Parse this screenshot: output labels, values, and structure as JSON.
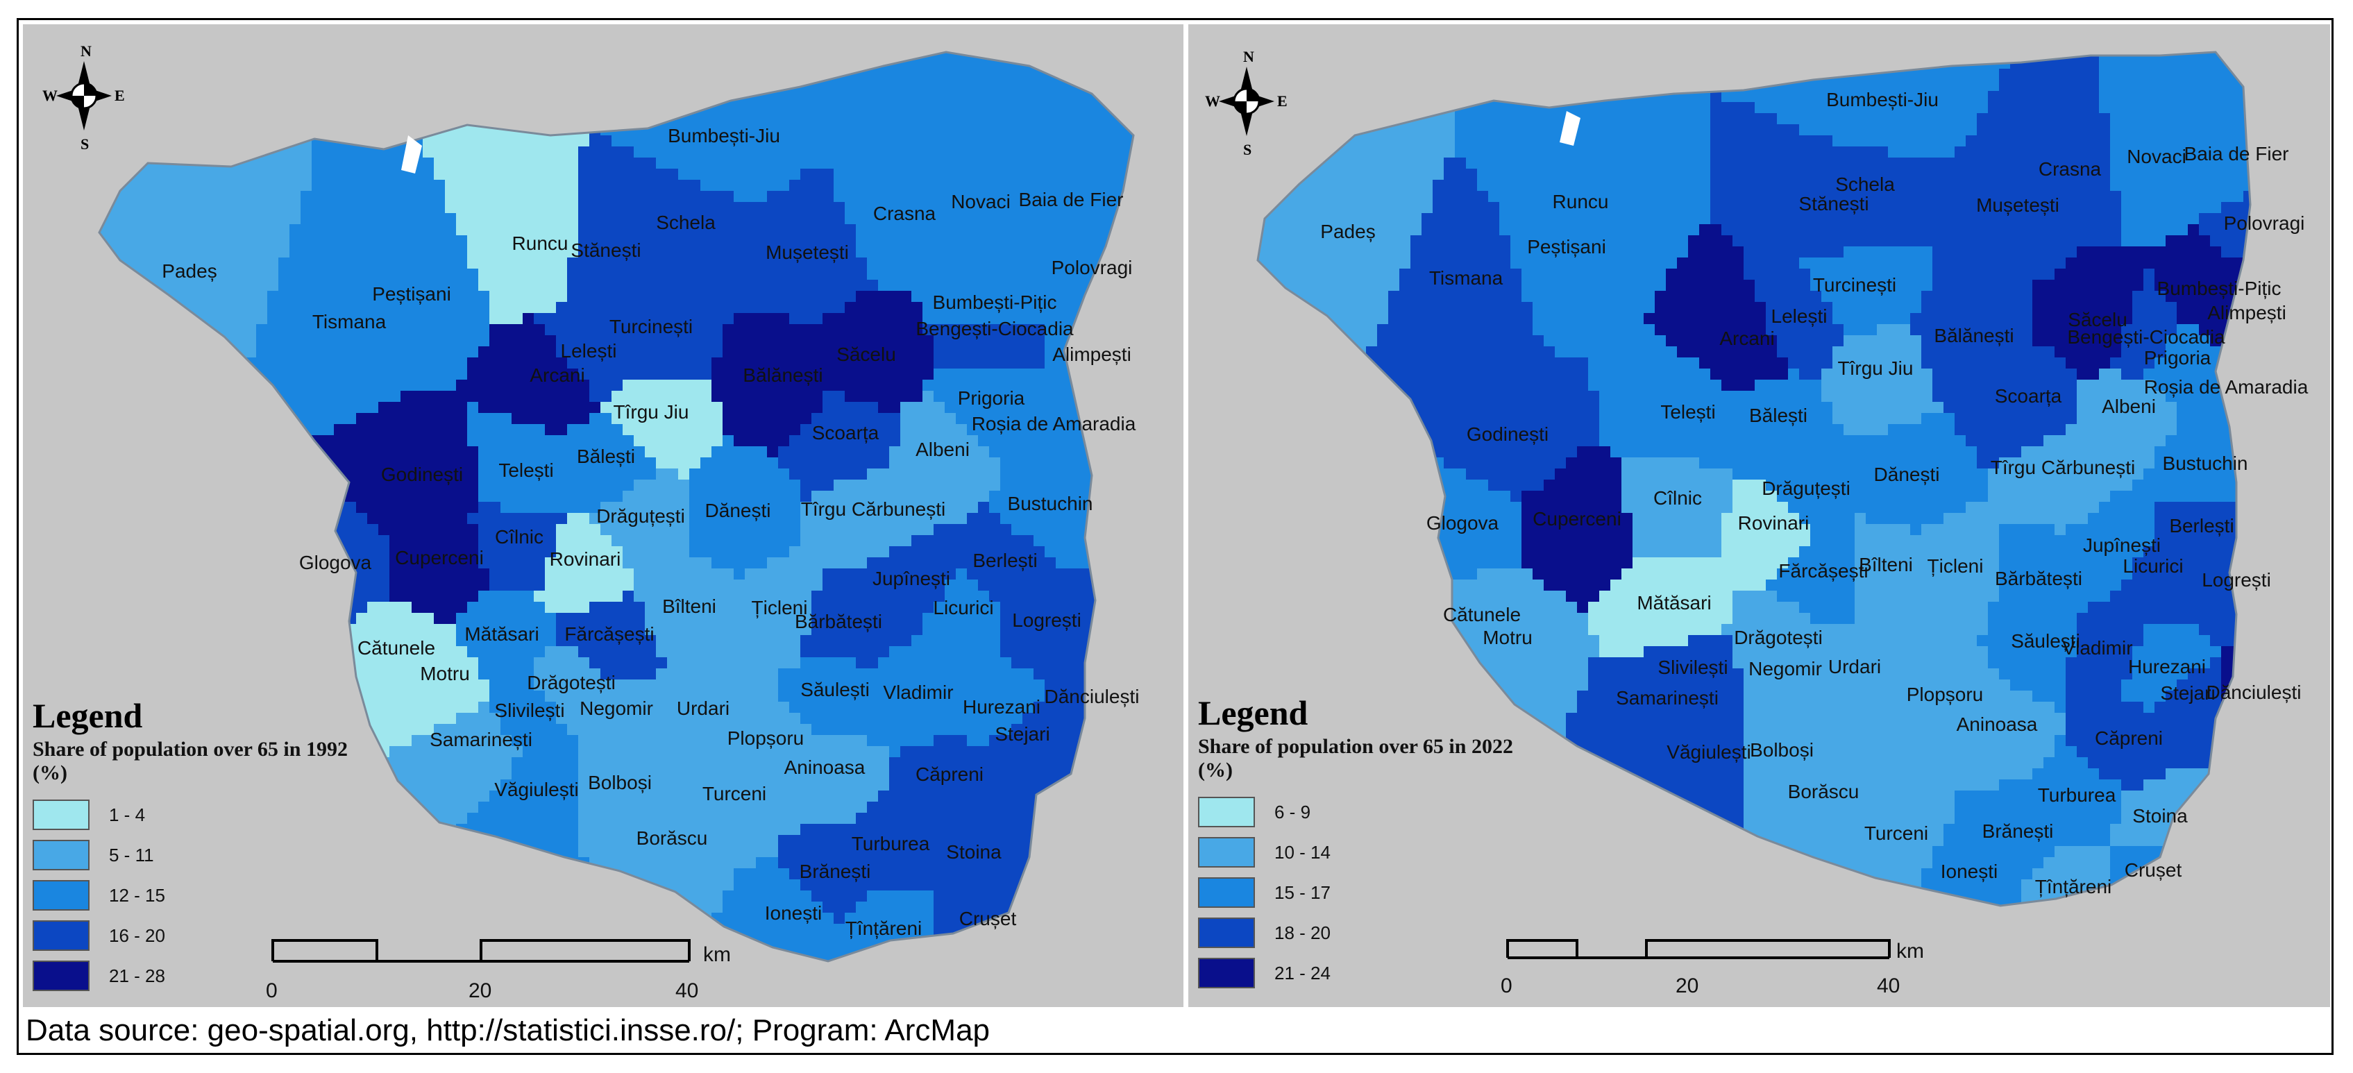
{
  "footer": "Data source: geo-spatial.org, http://statistici.insse.ro/; Program: ArcMap",
  "compass": {
    "n": "N",
    "s": "S",
    "e": "E",
    "w": "W"
  },
  "scale_unit": "km",
  "maps": [
    {
      "legend_title": "Legend",
      "legend_subtitle": "Share of population over 65 in 1992 (%)",
      "classes": [
        {
          "label": "1 - 4",
          "color": "#9fe7ee"
        },
        {
          "label": "5 - 11",
          "color": "#48a8e6"
        },
        {
          "label": "12 - 15",
          "color": "#1a86e0"
        },
        {
          "label": "16 - 20",
          "color": "#0c47c2"
        },
        {
          "label": "21 - 28",
          "color": "#090f8c"
        }
      ],
      "scale_ticks": [
        "0",
        "20",
        "40"
      ],
      "places": [
        {
          "name": "Bumbești-Jiu",
          "class": 2
        },
        {
          "name": "Padeș",
          "class": 1
        },
        {
          "name": "Runcu",
          "class": 0
        },
        {
          "name": "Schela",
          "class": 3
        },
        {
          "name": "Stănești",
          "class": 3
        },
        {
          "name": "Mușetești",
          "class": 3
        },
        {
          "name": "Crasna",
          "class": 2
        },
        {
          "name": "Novaci",
          "class": 2
        },
        {
          "name": "Baia de Fier",
          "class": 2
        },
        {
          "name": "Polovragi",
          "class": 2
        },
        {
          "name": "Peștișani",
          "class": 2
        },
        {
          "name": "Tismana",
          "class": 2
        },
        {
          "name": "Turcinești",
          "class": 3
        },
        {
          "name": "Bumbești-Pițic",
          "class": 2
        },
        {
          "name": "Bengești-Ciocadia",
          "class": 3
        },
        {
          "name": "Alimpești",
          "class": 2
        },
        {
          "name": "Lelești",
          "class": 3
        },
        {
          "name": "Arcani",
          "class": 4
        },
        {
          "name": "Bălănești",
          "class": 4
        },
        {
          "name": "Săcelu",
          "class": 4
        },
        {
          "name": "Tîrgu Jiu",
          "class": 0
        },
        {
          "name": "Prigoria",
          "class": 2
        },
        {
          "name": "Roșia de Amaradia",
          "class": 2
        },
        {
          "name": "Scoarța",
          "class": 3
        },
        {
          "name": "Albeni",
          "class": 1
        },
        {
          "name": "Godinești",
          "class": 4
        },
        {
          "name": "Telești",
          "class": 2
        },
        {
          "name": "Bălești",
          "class": 2
        },
        {
          "name": "Bustuchin",
          "class": 2
        },
        {
          "name": "Drăguțești",
          "class": 1
        },
        {
          "name": "Dănești",
          "class": 2
        },
        {
          "name": "Tîrgu Cărbunești",
          "class": 1
        },
        {
          "name": "Cîlnic",
          "class": 3
        },
        {
          "name": "Glogova",
          "class": 3
        },
        {
          "name": "Cuperceni",
          "class": 4
        },
        {
          "name": "Rovinari",
          "class": 0
        },
        {
          "name": "Berlești",
          "class": 3
        },
        {
          "name": "Jupînești",
          "class": 3
        },
        {
          "name": "Bîlteni",
          "class": 1
        },
        {
          "name": "Țicleni",
          "class": 1
        },
        {
          "name": "Bărbătești",
          "class": 3
        },
        {
          "name": "Licurici",
          "class": 2
        },
        {
          "name": "Logrești",
          "class": 3
        },
        {
          "name": "Mătăsari",
          "class": 2
        },
        {
          "name": "Fărcășești",
          "class": 3
        },
        {
          "name": "Cătunele",
          "class": 0
        },
        {
          "name": "Motru",
          "class": 0
        },
        {
          "name": "Drăgotești",
          "class": 1
        },
        {
          "name": "Slivilești",
          "class": 2
        },
        {
          "name": "Negomir",
          "class": 1
        },
        {
          "name": "Urdari",
          "class": 1
        },
        {
          "name": "Săulești",
          "class": 2
        },
        {
          "name": "Vladimir",
          "class": 2
        },
        {
          "name": "Hurezani",
          "class": 2
        },
        {
          "name": "Dănciulești",
          "class": 3
        },
        {
          "name": "Stejari",
          "class": 3
        },
        {
          "name": "Samarinești",
          "class": 1
        },
        {
          "name": "Plopșoru",
          "class": 1
        },
        {
          "name": "Aninoasa",
          "class": 1
        },
        {
          "name": "Căpreni",
          "class": 3
        },
        {
          "name": "Văgiulești",
          "class": 2
        },
        {
          "name": "Bolboși",
          "class": 1
        },
        {
          "name": "Turceni",
          "class": 1
        },
        {
          "name": "Stoina",
          "class": 3
        },
        {
          "name": "Borăscu",
          "class": 1
        },
        {
          "name": "Turburea",
          "class": 3
        },
        {
          "name": "Brănești",
          "class": 3
        },
        {
          "name": "Ionești",
          "class": 2
        },
        {
          "name": "Crușet",
          "class": 3
        },
        {
          "name": "Țînțăreni",
          "class": 2
        }
      ]
    },
    {
      "legend_title": "Legend",
      "legend_subtitle": "Share of population over 65 in 2022 (%)",
      "classes": [
        {
          "label": "6 - 9",
          "color": "#9fe7ee"
        },
        {
          "label": "10 - 14",
          "color": "#48a8e6"
        },
        {
          "label": "15 - 17",
          "color": "#1a86e0"
        },
        {
          "label": "18 - 20",
          "color": "#0c47c2"
        },
        {
          "label": "21 - 24",
          "color": "#090f8c"
        }
      ],
      "scale_ticks": [
        "0",
        "20",
        "40"
      ],
      "places": [
        {
          "name": "Bumbești-Jiu",
          "class": 2
        },
        {
          "name": "Padeș",
          "class": 1
        },
        {
          "name": "Runcu",
          "class": 2
        },
        {
          "name": "Schela",
          "class": 3
        },
        {
          "name": "Stănești",
          "class": 3
        },
        {
          "name": "Crasna",
          "class": 3
        },
        {
          "name": "Mușetești",
          "class": 3
        },
        {
          "name": "Novaci",
          "class": 2
        },
        {
          "name": "Baia de Fier",
          "class": 2
        },
        {
          "name": "Peștișani",
          "class": 2
        },
        {
          "name": "Polovragi",
          "class": 3
        },
        {
          "name": "Tismana",
          "class": 3
        },
        {
          "name": "Turcinești",
          "class": 2
        },
        {
          "name": "Bumbești-Pițic",
          "class": 4
        },
        {
          "name": "Lelești",
          "class": 3
        },
        {
          "name": "Arcani",
          "class": 4
        },
        {
          "name": "Bălănești",
          "class": 3
        },
        {
          "name": "Săcelu",
          "class": 4
        },
        {
          "name": "Bengești-Ciocadia",
          "class": 3
        },
        {
          "name": "Alimpești",
          "class": 4
        },
        {
          "name": "Tîrgu Jiu",
          "class": 1
        },
        {
          "name": "Prigoria",
          "class": 2
        },
        {
          "name": "Scoarța",
          "class": 3
        },
        {
          "name": "Albeni",
          "class": 1
        },
        {
          "name": "Roșia de Amaradia",
          "class": 2
        },
        {
          "name": "Telești",
          "class": 2
        },
        {
          "name": "Bălești",
          "class": 2
        },
        {
          "name": "Godinești",
          "class": 3
        },
        {
          "name": "Tîrgu Cărbunești",
          "class": 1
        },
        {
          "name": "Bustuchin",
          "class": 2
        },
        {
          "name": "Drăguțești",
          "class": 2
        },
        {
          "name": "Dănești",
          "class": 2
        },
        {
          "name": "Cîlnic",
          "class": 1
        },
        {
          "name": "Rovinari",
          "class": 0
        },
        {
          "name": "Glogova",
          "class": 2
        },
        {
          "name": "Cuperceni",
          "class": 4
        },
        {
          "name": "Berlești",
          "class": 3
        },
        {
          "name": "Jupînești",
          "class": 2
        },
        {
          "name": "Licurici",
          "class": 3
        },
        {
          "name": "Fărcășești",
          "class": 2
        },
        {
          "name": "Bîlteni",
          "class": 1
        },
        {
          "name": "Țicleni",
          "class": 1
        },
        {
          "name": "Bărbătești",
          "class": 2
        },
        {
          "name": "Logrești",
          "class": 3
        },
        {
          "name": "Mătăsari",
          "class": 0
        },
        {
          "name": "Cătunele",
          "class": 1
        },
        {
          "name": "Motru",
          "class": 1
        },
        {
          "name": "Drăgotești",
          "class": 1
        },
        {
          "name": "Săulești",
          "class": 2
        },
        {
          "name": "Vladimir",
          "class": 3
        },
        {
          "name": "Slivilești",
          "class": 3
        },
        {
          "name": "Negomir",
          "class": 1
        },
        {
          "name": "Urdari",
          "class": 1
        },
        {
          "name": "Hurezani",
          "class": 2
        },
        {
          "name": "Stejari",
          "class": 3
        },
        {
          "name": "Dănciulești",
          "class": 4
        },
        {
          "name": "Samarinești",
          "class": 3
        },
        {
          "name": "Plopșoru",
          "class": 1
        },
        {
          "name": "Aninoasa",
          "class": 1
        },
        {
          "name": "Căpreni",
          "class": 3
        },
        {
          "name": "Văgiulești",
          "class": 3
        },
        {
          "name": "Bolboși",
          "class": 1
        },
        {
          "name": "Borăscu",
          "class": 1
        },
        {
          "name": "Turburea",
          "class": 2
        },
        {
          "name": "Stoina",
          "class": 1
        },
        {
          "name": "Turceni",
          "class": 1
        },
        {
          "name": "Brănești",
          "class": 2
        },
        {
          "name": "Crușet",
          "class": 2
        },
        {
          "name": "Ionești",
          "class": 2
        },
        {
          "name": "Țînțăreni",
          "class": 1
        }
      ]
    }
  ]
}
